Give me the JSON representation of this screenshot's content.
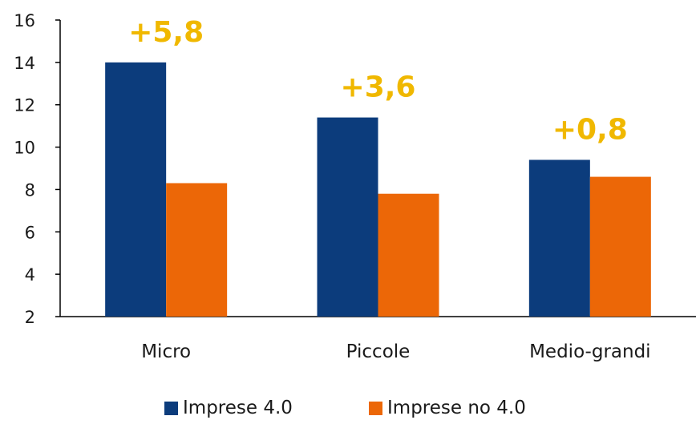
{
  "colors": {
    "series1": "#0c3c7c",
    "series2": "#ec6707",
    "annotation": "#f0b800",
    "axis": "#000000"
  },
  "chart_data": {
    "type": "bar",
    "categories": [
      "Micro",
      "Piccole",
      "Medio-grandi"
    ],
    "series": [
      {
        "name": "Imprese 4.0",
        "values": [
          14.0,
          11.4,
          9.4
        ]
      },
      {
        "name": "Imprese no 4.0",
        "values": [
          8.3,
          7.8,
          8.6
        ]
      }
    ],
    "annotations": [
      "+5,8",
      "+3,6",
      "+0,8"
    ],
    "ylim": [
      2,
      16
    ],
    "yticks": [
      2,
      4,
      6,
      8,
      10,
      12,
      14,
      16
    ],
    "grid": false,
    "legend": "bottom",
    "title": "",
    "xlabel": "",
    "ylabel": ""
  }
}
